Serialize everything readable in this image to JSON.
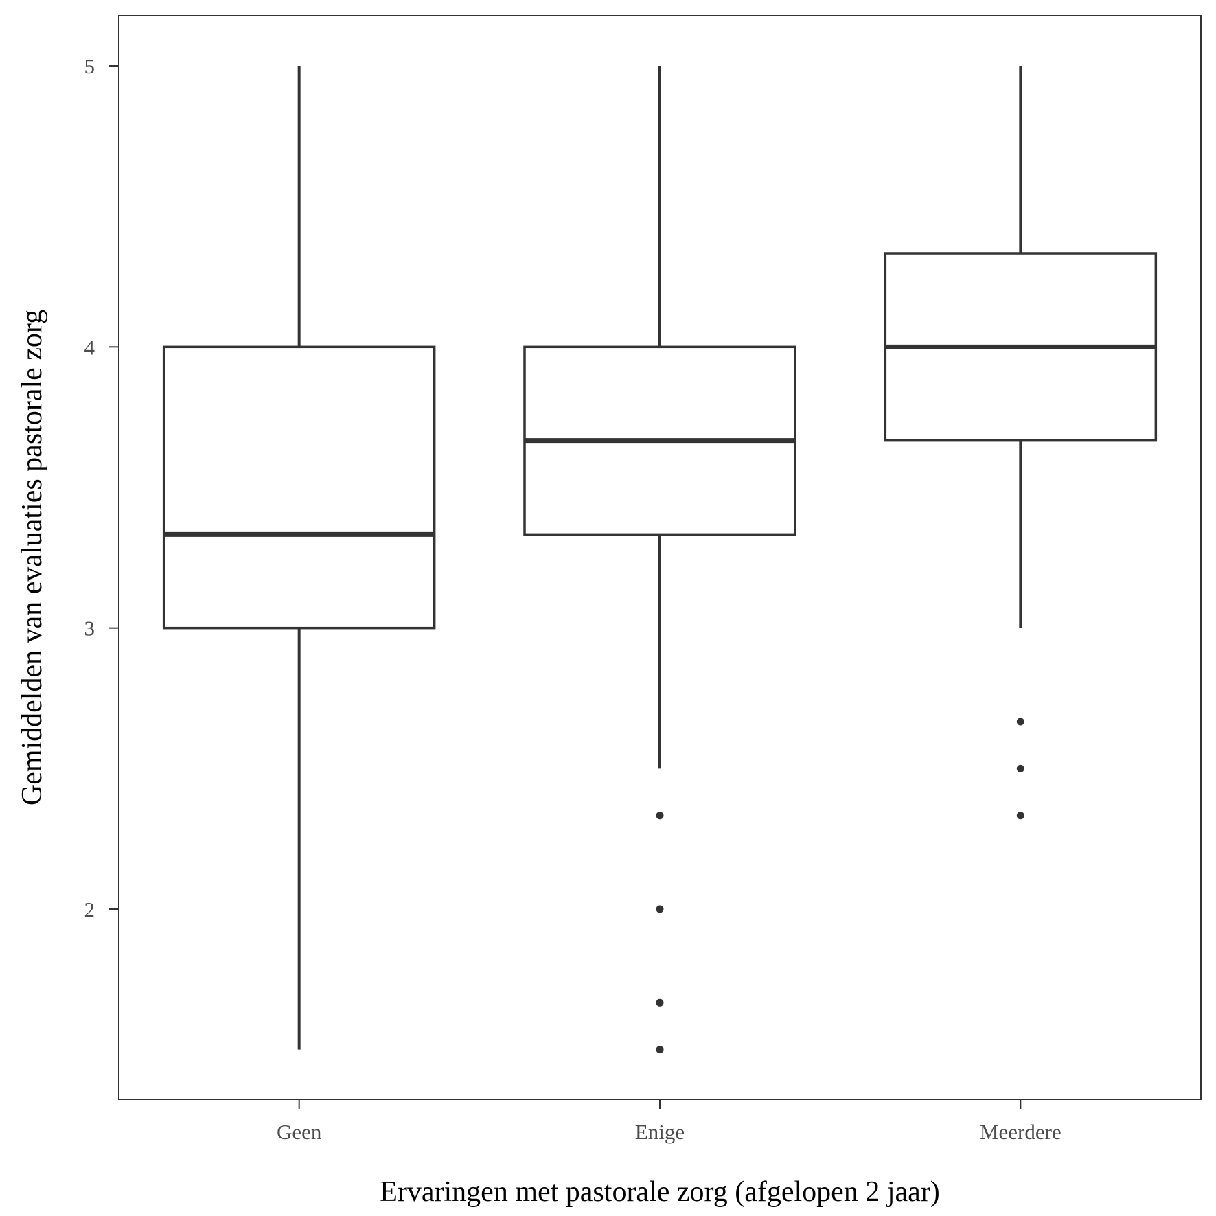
{
  "chart_data": {
    "type": "box",
    "xlabel": "Ervaringen met pastorale zorg (afgelopen 2 jaar)",
    "ylabel": "Gemiddelden van evaluaties pastorale zorg",
    "ylim": [
      1.33,
      5.18
    ],
    "yticks": [
      2,
      3,
      4,
      5
    ],
    "categories": [
      "Geen",
      "Enige",
      "Meerdere"
    ],
    "boxes": [
      {
        "category": "Geen",
        "whisker_low": 1.5,
        "q1": 3.0,
        "median": 3.333,
        "q3": 4.0,
        "whisker_high": 5.0,
        "outliers": []
      },
      {
        "category": "Enige",
        "whisker_low": 2.5,
        "q1": 3.333,
        "median": 3.667,
        "q3": 4.0,
        "whisker_high": 5.0,
        "outliers": [
          2.333,
          2.0,
          1.667,
          1.5
        ]
      },
      {
        "category": "Meerdere",
        "whisker_low": 3.0,
        "q1": 3.667,
        "median": 4.0,
        "q3": 4.333,
        "whisker_high": 5.0,
        "outliers": [
          2.667,
          2.5,
          2.333
        ]
      }
    ],
    "grid": false,
    "legend": "none",
    "colors": {
      "line": "#333333",
      "fill": "#ffffff",
      "panel_border": "#333333",
      "tick_text": "#4d4d4d"
    }
  }
}
